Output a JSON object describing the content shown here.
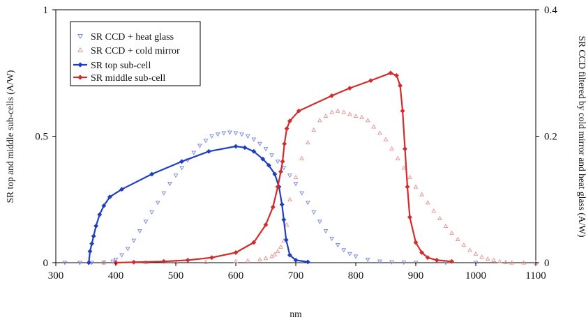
{
  "chart_data": {
    "type": "line",
    "xlabel": "nm",
    "ylabel_left": "SR top and middle sub-cells (A/W)",
    "ylabel_right": "SR CCD filtered by cold mirror and heat glass (A/W)",
    "xlim": [
      300,
      1100
    ],
    "ylim_left": [
      0,
      1
    ],
    "ylim_right": [
      0,
      0.4
    ],
    "x_ticks": [
      "300",
      "400",
      "500",
      "600",
      "700",
      "800",
      "900",
      "1000",
      "1100"
    ],
    "y_left_ticks": [
      "0",
      "0.5",
      "1"
    ],
    "y_right_ticks": [
      "0",
      "0.2",
      "0.4"
    ],
    "grid": false,
    "legend_position": "top-left",
    "colors": {
      "blue": "#1f3fbf",
      "red": "#d42a2a",
      "light_blue": "#8090e0",
      "light_red": "#e89a9a"
    },
    "series": [
      {
        "name": "SR CCD + heat glass",
        "axis": "right",
        "marker": "triangle-down",
        "color": "#8090e0",
        "line": false,
        "x": [
          315,
          340,
          360,
          380,
          395,
          400,
          410,
          420,
          430,
          440,
          450,
          460,
          470,
          480,
          490,
          500,
          510,
          520,
          530,
          540,
          550,
          560,
          570,
          580,
          590,
          600,
          610,
          620,
          630,
          640,
          650,
          660,
          670,
          680,
          690,
          700,
          710,
          720,
          730,
          740,
          750,
          760,
          770,
          780,
          790,
          800,
          820,
          840,
          860,
          880,
          900,
          950,
          1000
        ],
        "y": [
          0.0,
          0.0,
          0.0,
          0.0005,
          0.002,
          0.005,
          0.012,
          0.022,
          0.035,
          0.05,
          0.065,
          0.08,
          0.095,
          0.11,
          0.125,
          0.138,
          0.15,
          0.162,
          0.174,
          0.185,
          0.193,
          0.2,
          0.203,
          0.205,
          0.206,
          0.205,
          0.203,
          0.2,
          0.195,
          0.188,
          0.18,
          0.17,
          0.16,
          0.15,
          0.138,
          0.125,
          0.11,
          0.095,
          0.08,
          0.065,
          0.05,
          0.038,
          0.028,
          0.02,
          0.014,
          0.01,
          0.005,
          0.002,
          0.001,
          0.0005,
          0.0,
          0.0,
          0.0
        ]
      },
      {
        "name": "SR CCD + cold mirror",
        "axis": "right",
        "marker": "triangle-up",
        "color": "#e89a9a",
        "line": false,
        "x": [
          380,
          400,
          450,
          500,
          550,
          600,
          620,
          640,
          650,
          660,
          665,
          670,
          675,
          680,
          685,
          690,
          700,
          710,
          720,
          730,
          740,
          750,
          760,
          770,
          780,
          790,
          800,
          810,
          820,
          830,
          840,
          850,
          860,
          870,
          880,
          890,
          900,
          910,
          920,
          930,
          940,
          950,
          960,
          970,
          980,
          990,
          1000,
          1010,
          1020,
          1030,
          1040,
          1050,
          1060,
          1080,
          1100
        ],
        "y": [
          0.0,
          0.0,
          0.0005,
          0.001,
          0.001,
          0.002,
          0.003,
          0.005,
          0.007,
          0.01,
          0.013,
          0.018,
          0.025,
          0.035,
          0.06,
          0.1,
          0.135,
          0.165,
          0.19,
          0.21,
          0.225,
          0.232,
          0.238,
          0.24,
          0.238,
          0.235,
          0.232,
          0.23,
          0.225,
          0.215,
          0.205,
          0.195,
          0.18,
          0.165,
          0.15,
          0.135,
          0.12,
          0.108,
          0.095,
          0.082,
          0.07,
          0.058,
          0.047,
          0.037,
          0.028,
          0.02,
          0.014,
          0.009,
          0.006,
          0.004,
          0.002,
          0.001,
          0.0,
          0.0,
          0.0
        ]
      },
      {
        "name": "SR top sub-cell",
        "axis": "left",
        "marker": "diamond",
        "color": "#1f3fbf",
        "line": true,
        "x": [
          355,
          357,
          360,
          363,
          367,
          373,
          380,
          390,
          410,
          460,
          510,
          555,
          600,
          615,
          630,
          645,
          655,
          665,
          672,
          677,
          680,
          684,
          690,
          700,
          720
        ],
        "y": [
          0.0,
          0.045,
          0.075,
          0.105,
          0.145,
          0.19,
          0.225,
          0.26,
          0.29,
          0.35,
          0.4,
          0.44,
          0.46,
          0.455,
          0.44,
          0.41,
          0.385,
          0.35,
          0.3,
          0.23,
          0.17,
          0.09,
          0.03,
          0.01,
          0.003
        ]
      },
      {
        "name": "SR middle sub-cell",
        "axis": "left",
        "marker": "diamond",
        "color": "#d42a2a",
        "line": true,
        "x": [
          400,
          430,
          480,
          520,
          560,
          600,
          630,
          650,
          662,
          670,
          675,
          678,
          681,
          685,
          690,
          705,
          760,
          790,
          825,
          858,
          868,
          874,
          878,
          882,
          886,
          890,
          900,
          910,
          920,
          935,
          960
        ],
        "y": [
          0.0,
          0.002,
          0.005,
          0.01,
          0.02,
          0.04,
          0.08,
          0.15,
          0.22,
          0.3,
          0.36,
          0.4,
          0.47,
          0.53,
          0.56,
          0.6,
          0.66,
          0.69,
          0.72,
          0.75,
          0.74,
          0.7,
          0.6,
          0.45,
          0.3,
          0.18,
          0.08,
          0.04,
          0.02,
          0.01,
          0.005
        ]
      }
    ]
  }
}
